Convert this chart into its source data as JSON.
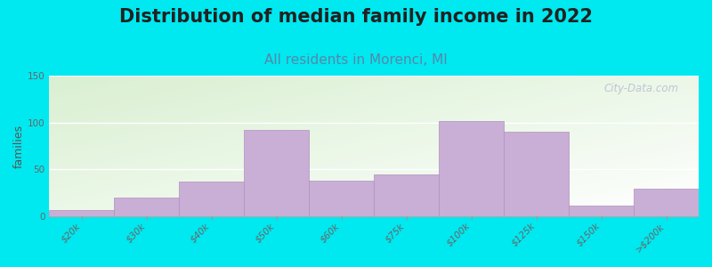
{
  "title": "Distribution of median family income in 2022",
  "subtitle": "All residents in Morenci, MI",
  "ylabel": "families",
  "categories": [
    "$20k",
    "$30k",
    "$40k",
    "$50k",
    "$60k",
    "$75k",
    "$100k",
    "$125k",
    "$150k",
    ">$200k"
  ],
  "values": [
    7,
    20,
    37,
    92,
    38,
    45,
    102,
    90,
    12,
    30
  ],
  "bar_color": "#c9aed6",
  "bar_edgecolor": "#b090c0",
  "bar_linewidth": 0.5,
  "background_outer": "#00e8f0",
  "plot_bg_color": "#eef5e8",
  "title_fontsize": 15,
  "subtitle_fontsize": 11,
  "ylabel_fontsize": 9,
  "tick_fontsize": 7.5,
  "ylim": [
    0,
    150
  ],
  "yticks": [
    0,
    50,
    100,
    150
  ],
  "watermark": "City-Data.com"
}
